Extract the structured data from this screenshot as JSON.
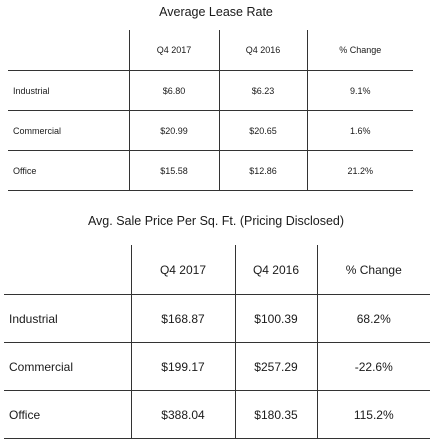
{
  "lease_table": {
    "title": "Average Lease Rate",
    "columns": [
      "",
      "Q4 2017",
      "Q4 2016",
      "% Change"
    ],
    "rows": [
      {
        "label": "Industrial",
        "q4_2017": "$6.80",
        "q4_2016": "$6.23",
        "change": "9.1%"
      },
      {
        "label": "Commercial",
        "q4_2017": "$20.99",
        "q4_2016": "$20.65",
        "change": "1.6%"
      },
      {
        "label": "Office",
        "q4_2017": "$15.58",
        "q4_2016": "$12.86",
        "change": "21.2%"
      }
    ]
  },
  "sale_table": {
    "title": "Avg. Sale Price Per Sq. Ft. (Pricing Disclosed)",
    "columns": [
      "",
      "Q4 2017",
      "Q4 2016",
      "% Change"
    ],
    "rows": [
      {
        "label": "Industrial",
        "q4_2017": "$168.87",
        "q4_2016": "$100.39",
        "change": "68.2%"
      },
      {
        "label": "Commercial",
        "q4_2017": "$199.17",
        "q4_2016": "$257.29",
        "change": "-22.6%"
      },
      {
        "label": "Office",
        "q4_2017": "$388.04",
        "q4_2016": "$180.35",
        "change": "115.2%"
      }
    ]
  }
}
